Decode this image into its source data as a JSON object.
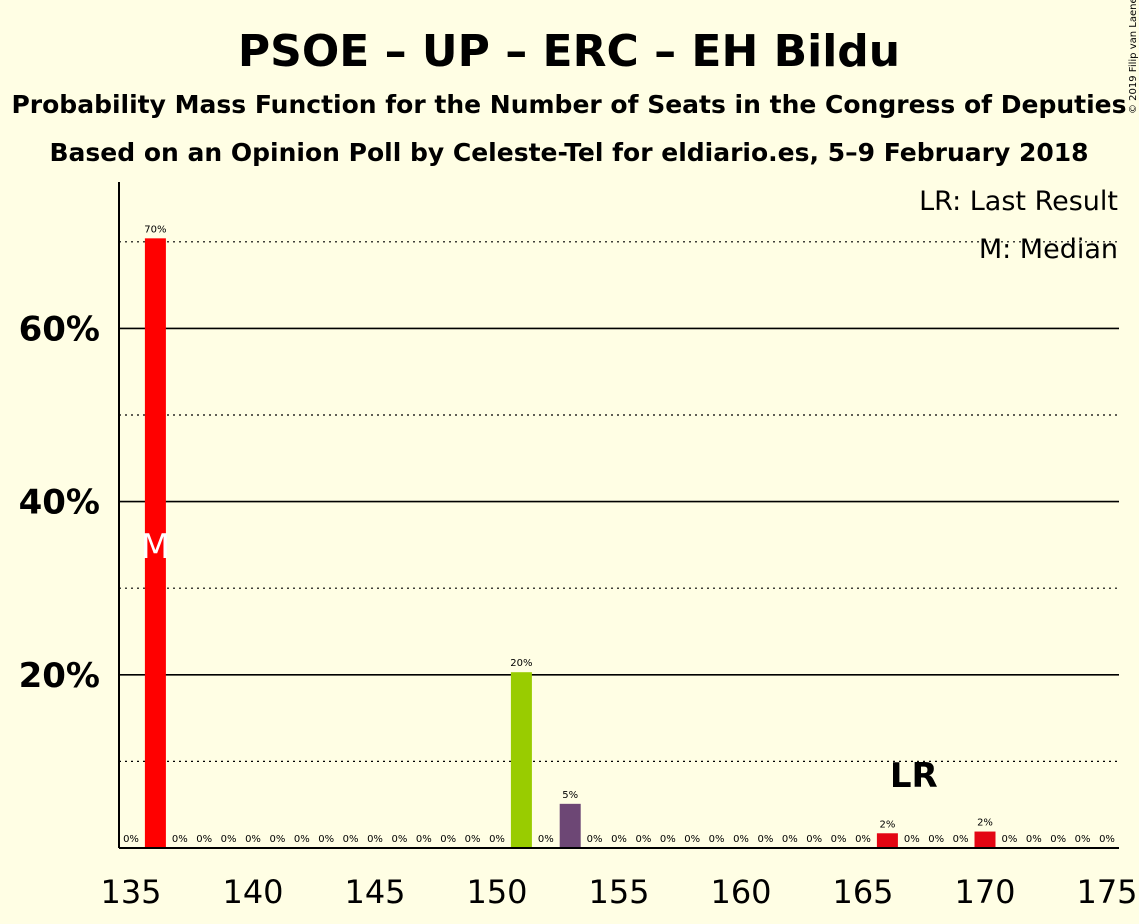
{
  "header": {
    "title": "PSOE – UP – ERC – EH Bildu",
    "subtitle": "Probability Mass Function for the Number of Seats in the Congress of Deputies",
    "source": "Based on an Opinion Poll by Celeste-Tel for eldiario.es, 5–9 February 2018"
  },
  "credit": "© 2019 Filip van Laenen",
  "legend": {
    "last_result": "LR: Last Result",
    "median": "M: Median"
  },
  "colors": {
    "background": "#FFFEE4",
    "default_bar": "#E30613",
    "bar_136": "#FF0000",
    "bar_151": "#99CC00",
    "bar_153": "#6D4775"
  },
  "chart_data": {
    "type": "bar",
    "x": [
      135,
      136,
      137,
      138,
      139,
      140,
      141,
      142,
      143,
      144,
      145,
      146,
      147,
      148,
      149,
      150,
      151,
      152,
      153,
      154,
      155,
      156,
      157,
      158,
      159,
      160,
      161,
      162,
      163,
      164,
      165,
      166,
      167,
      168,
      169,
      170,
      171,
      172,
      173,
      174,
      175
    ],
    "values": [
      0,
      70,
      0,
      0,
      0,
      0,
      0,
      0,
      0,
      0,
      0,
      0,
      0,
      0,
      0,
      0,
      20,
      0,
      5,
      0,
      0,
      0,
      0,
      0,
      0,
      0,
      0,
      0,
      0,
      0,
      0,
      2,
      0,
      0,
      0,
      2,
      0,
      0,
      0,
      0,
      0
    ],
    "value_labels": [
      "0%",
      "70%",
      "0%",
      "0%",
      "0%",
      "0%",
      "0%",
      "0%",
      "0%",
      "0%",
      "0%",
      "0%",
      "0%",
      "0%",
      "0%",
      "0%",
      "20%",
      "0%",
      "5%",
      "0%",
      "0%",
      "0%",
      "0%",
      "0%",
      "0%",
      "0%",
      "0%",
      "0%",
      "0%",
      "0%",
      "0%",
      "2%",
      "0%",
      "0%",
      "0%",
      "2%",
      "0%",
      "0%",
      "0%",
      "0%",
      "0%"
    ],
    "bar_values": [
      0,
      70.4,
      0,
      0,
      0,
      0,
      0,
      0,
      0,
      0,
      0,
      0,
      0,
      0,
      0,
      0,
      20.3,
      0,
      5.1,
      0,
      0,
      0,
      0,
      0,
      0,
      0,
      0,
      0,
      0,
      0,
      0,
      1.7,
      0,
      0,
      0,
      1.9,
      0,
      0,
      0,
      0,
      0
    ],
    "xticks": [
      135,
      140,
      145,
      150,
      155,
      160,
      165,
      170,
      175
    ],
    "yticks": [
      20,
      40,
      60
    ],
    "ytick_labels": [
      "20%",
      "40%",
      "60%"
    ],
    "ylim": [
      0,
      77
    ],
    "xlim": [
      134.5,
      175.5
    ],
    "median": 136,
    "median_label": "M",
    "last_result": 167,
    "last_result_label": "LR",
    "grid": "solid at 20% steps, dotted at 10% steps"
  }
}
